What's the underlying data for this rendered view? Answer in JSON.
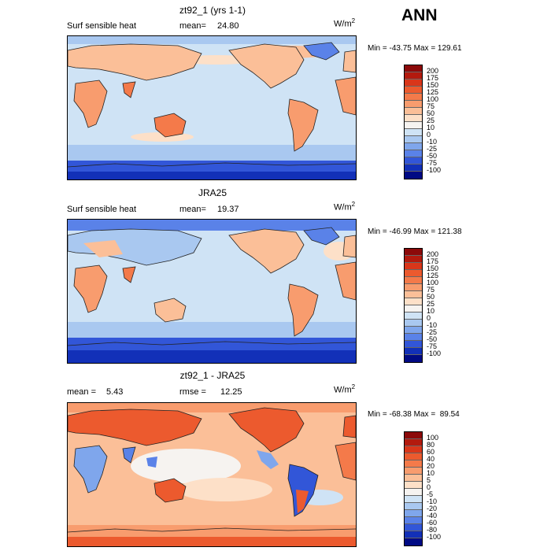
{
  "season_label": "ANN",
  "panels": [
    {
      "title": "zt92_1 (yrs 1-1)",
      "left_label": "Surf sensible heat",
      "stat_label": "mean=",
      "stat_value": "24.80",
      "stat2_label": "",
      "stat2_value": "",
      "units_base": "W/m",
      "units_exp": "2",
      "min_max": "Min = -43.75 Max = 129.61",
      "colorbar_levels": [
        "200",
        "175",
        "150",
        "125",
        "100",
        "75",
        "50",
        "25",
        "10",
        "0",
        "-10",
        "-25",
        "-50",
        "-75",
        "-100"
      ],
      "colorbar_colors": [
        "#8c0a0a",
        "#b31a0e",
        "#d9361a",
        "#ec5a2e",
        "#f47a4a",
        "#f89c6e",
        "#fbbf98",
        "#fde0c8",
        "#f6f3f0",
        "#cfe3f5",
        "#a9c8f0",
        "#7fa6ec",
        "#5a82e8",
        "#3256d8",
        "#1230b8",
        "#000a84"
      ]
    },
    {
      "title": "JRA25",
      "left_label": "Surf sensible heat",
      "stat_label": "mean=",
      "stat_value": "19.37",
      "stat2_label": "",
      "stat2_value": "",
      "units_base": "W/m",
      "units_exp": "2",
      "min_max": "Min = -46.99 Max = 121.38",
      "colorbar_levels": [
        "200",
        "175",
        "150",
        "125",
        "100",
        "75",
        "50",
        "25",
        "10",
        "0",
        "-10",
        "-25",
        "-50",
        "-75",
        "-100"
      ],
      "colorbar_colors": [
        "#8c0a0a",
        "#b31a0e",
        "#d9361a",
        "#ec5a2e",
        "#f47a4a",
        "#f89c6e",
        "#fbbf98",
        "#fde0c8",
        "#f6f3f0",
        "#cfe3f5",
        "#a9c8f0",
        "#7fa6ec",
        "#5a82e8",
        "#3256d8",
        "#1230b8",
        "#000a84"
      ]
    },
    {
      "title": "zt92_1 - JRA25",
      "left_label": "",
      "stat_label": "mean =",
      "stat_value": "5.43",
      "stat2_label": "rmse =",
      "stat2_value": "12.25",
      "units_base": "W/m",
      "units_exp": "2",
      "min_max": "Min = -68.38 Max =  89.54",
      "colorbar_levels": [
        "100",
        "80",
        "60",
        "40",
        "20",
        "10",
        "5",
        "0",
        "-5",
        "-10",
        "-20",
        "-40",
        "-60",
        "-80",
        "-100"
      ],
      "colorbar_colors": [
        "#8c0a0a",
        "#b31a0e",
        "#d9361a",
        "#ec5a2e",
        "#f47a4a",
        "#f89c6e",
        "#fbbf98",
        "#fde0c8",
        "#f6f3f0",
        "#cfe3f5",
        "#a9c8f0",
        "#7fa6ec",
        "#5a82e8",
        "#3256d8",
        "#1230b8",
        "#000a84"
      ]
    }
  ],
  "colors": {
    "ocean_light": "#cfe3f5",
    "cool_blue": "#7fa6ec",
    "deep_blue": "#3256d8",
    "warm_light": "#fbbf98",
    "warm_mid": "#f89c6e",
    "warm_strong": "#ec5a2e"
  }
}
